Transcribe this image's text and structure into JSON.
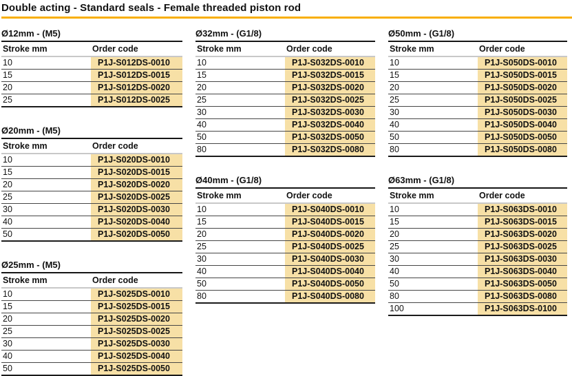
{
  "page": {
    "title": "Double acting - Standard seals - Female threaded piston rod",
    "accent_color": "#F9AE00",
    "highlight_color": "#F7E0A6"
  },
  "column_headers": {
    "stroke": "Stroke mm",
    "order": "Order code"
  },
  "tables": [
    {
      "title": "Ø12mm - (M5)",
      "column": 0,
      "rows": [
        {
          "stroke": "10",
          "code": "P1J-S012DS-0010"
        },
        {
          "stroke": "15",
          "code": "P1J-S012DS-0015"
        },
        {
          "stroke": "20",
          "code": "P1J-S012DS-0020"
        },
        {
          "stroke": "25",
          "code": "P1J-S012DS-0025"
        }
      ]
    },
    {
      "title": "Ø20mm - (M5)",
      "column": 0,
      "rows": [
        {
          "stroke": "10",
          "code": "P1J-S020DS-0010"
        },
        {
          "stroke": "15",
          "code": "P1J-S020DS-0015"
        },
        {
          "stroke": "20",
          "code": "P1J-S020DS-0020"
        },
        {
          "stroke": "25",
          "code": "P1J-S020DS-0025"
        },
        {
          "stroke": "30",
          "code": "P1J-S020DS-0030"
        },
        {
          "stroke": "40",
          "code": "P1J-S020DS-0040"
        },
        {
          "stroke": "50",
          "code": "P1J-S020DS-0050"
        }
      ]
    },
    {
      "title": "Ø25mm - (M5)",
      "column": 0,
      "rows": [
        {
          "stroke": "10",
          "code": "P1J-S025DS-0010"
        },
        {
          "stroke": "15",
          "code": "P1J-S025DS-0015"
        },
        {
          "stroke": "20",
          "code": "P1J-S025DS-0020"
        },
        {
          "stroke": "25",
          "code": "P1J-S025DS-0025"
        },
        {
          "stroke": "30",
          "code": "P1J-S025DS-0030"
        },
        {
          "stroke": "40",
          "code": "P1J-S025DS-0040"
        },
        {
          "stroke": "50",
          "code": "P1J-S025DS-0050"
        }
      ]
    },
    {
      "title": "Ø32mm - (G1/8)",
      "column": 1,
      "rows": [
        {
          "stroke": "10",
          "code": "P1J-S032DS-0010"
        },
        {
          "stroke": "15",
          "code": "P1J-S032DS-0015"
        },
        {
          "stroke": "20",
          "code": "P1J-S032DS-0020"
        },
        {
          "stroke": "25",
          "code": "P1J-S032DS-0025"
        },
        {
          "stroke": "30",
          "code": "P1J-S032DS-0030"
        },
        {
          "stroke": "40",
          "code": "P1J-S032DS-0040"
        },
        {
          "stroke": "50",
          "code": "P1J-S032DS-0050"
        },
        {
          "stroke": "80",
          "code": "P1J-S032DS-0080"
        }
      ]
    },
    {
      "title": "Ø40mm - (G1/8)",
      "column": 1,
      "rows": [
        {
          "stroke": "10",
          "code": "P1J-S040DS-0010"
        },
        {
          "stroke": "15",
          "code": "P1J-S040DS-0015"
        },
        {
          "stroke": "20",
          "code": "P1J-S040DS-0020"
        },
        {
          "stroke": "25",
          "code": "P1J-S040DS-0025"
        },
        {
          "stroke": "30",
          "code": "P1J-S040DS-0030"
        },
        {
          "stroke": "40",
          "code": "P1J-S040DS-0040"
        },
        {
          "stroke": "50",
          "code": "P1J-S040DS-0050"
        },
        {
          "stroke": "80",
          "code": "P1J-S040DS-0080"
        }
      ]
    },
    {
      "title": "Ø50mm - (G1/8)",
      "column": 2,
      "rows": [
        {
          "stroke": "10",
          "code": "P1J-S050DS-0010"
        },
        {
          "stroke": "15",
          "code": "P1J-S050DS-0015"
        },
        {
          "stroke": "20",
          "code": "P1J-S050DS-0020"
        },
        {
          "stroke": "25",
          "code": "P1J-S050DS-0025"
        },
        {
          "stroke": "30",
          "code": "P1J-S050DS-0030"
        },
        {
          "stroke": "40",
          "code": "P1J-S050DS-0040"
        },
        {
          "stroke": "50",
          "code": "P1J-S050DS-0050"
        },
        {
          "stroke": "80",
          "code": "P1J-S050DS-0080"
        }
      ]
    },
    {
      "title": "Ø63mm - (G1/8)",
      "column": 2,
      "rows": [
        {
          "stroke": "10",
          "code": "P1J-S063DS-0010"
        },
        {
          "stroke": "15",
          "code": "P1J-S063DS-0015"
        },
        {
          "stroke": "20",
          "code": "P1J-S063DS-0020"
        },
        {
          "stroke": "25",
          "code": "P1J-S063DS-0025"
        },
        {
          "stroke": "30",
          "code": "P1J-S063DS-0030"
        },
        {
          "stroke": "40",
          "code": "P1J-S063DS-0040"
        },
        {
          "stroke": "50",
          "code": "P1J-S063DS-0050"
        },
        {
          "stroke": "80",
          "code": "P1J-S063DS-0080"
        },
        {
          "stroke": "100",
          "code": "P1J-S063DS-0100"
        }
      ]
    }
  ]
}
